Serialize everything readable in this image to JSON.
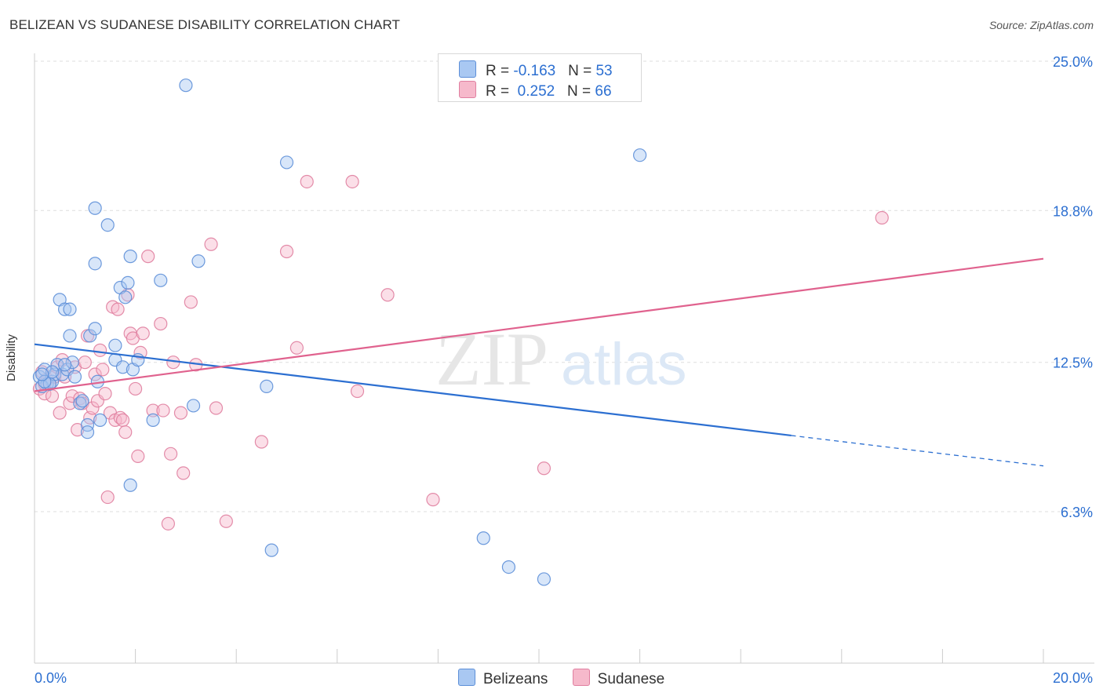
{
  "header": {
    "title": "BELIZEAN VS SUDANESE DISABILITY CORRELATION CHART",
    "source": "Source: ZipAtlas.com"
  },
  "watermark": {
    "zip": "ZIP",
    "atlas": "atlas"
  },
  "legend": {
    "row1": {
      "r_label": "R = ",
      "r_value": "-0.163",
      "n_label": "N = ",
      "n_value": "53"
    },
    "row2": {
      "r_label": "R = ",
      "r_value": "0.252",
      "n_label": "N = ",
      "n_value": "66"
    }
  },
  "bottom_legend": {
    "series1": "Belizeans",
    "series2": "Sudanese"
  },
  "colors": {
    "belizeans_fill": "#a9c8f2",
    "belizeans_stroke": "#5d8fd8",
    "belizeans_line": "#2c6fd1",
    "sudanese_fill": "#f6b9cb",
    "sudanese_stroke": "#e07fa0",
    "sudanese_line": "#e0628e",
    "tick_label": "#2c6fd1",
    "grid": "#dddddd"
  },
  "chart_data": {
    "type": "scatter",
    "title": "BELIZEAN VS SUDANESE DISABILITY CORRELATION CHART",
    "xlabel": "",
    "ylabel": "Disability",
    "xlim": [
      0,
      20
    ],
    "ylim": [
      0,
      26
    ],
    "x_tick_labels": [
      "0.0%",
      "20.0%"
    ],
    "y_ticks": [
      6.3,
      12.5,
      18.8,
      25.0
    ],
    "y_tick_labels": [
      "6.3%",
      "12.5%",
      "18.8%",
      "25.0%"
    ],
    "grid": "horizontal dashed",
    "series": [
      {
        "name": "Belizeans",
        "points": [
          [
            0.1,
            11.9
          ],
          [
            0.2,
            12.2
          ],
          [
            0.25,
            11.6
          ],
          [
            0.35,
            11.7
          ],
          [
            0.4,
            12.0
          ],
          [
            0.45,
            12.4
          ],
          [
            0.55,
            12.0
          ],
          [
            0.5,
            15.1
          ],
          [
            0.6,
            14.7
          ],
          [
            0.7,
            14.7
          ],
          [
            0.65,
            12.2
          ],
          [
            0.7,
            13.6
          ],
          [
            0.75,
            12.5
          ],
          [
            0.8,
            11.9
          ],
          [
            0.9,
            10.8
          ],
          [
            0.95,
            10.9
          ],
          [
            1.05,
            9.9
          ],
          [
            1.05,
            9.6
          ],
          [
            1.1,
            13.6
          ],
          [
            1.2,
            13.9
          ],
          [
            1.25,
            11.7
          ],
          [
            1.3,
            10.1
          ],
          [
            1.2,
            16.6
          ],
          [
            1.2,
            18.9
          ],
          [
            1.45,
            18.2
          ],
          [
            1.6,
            13.2
          ],
          [
            1.6,
            12.6
          ],
          [
            1.7,
            15.6
          ],
          [
            1.75,
            12.3
          ],
          [
            1.8,
            15.2
          ],
          [
            1.85,
            15.8
          ],
          [
            1.95,
            12.2
          ],
          [
            2.05,
            12.6
          ],
          [
            1.9,
            16.9
          ],
          [
            1.9,
            7.4
          ],
          [
            2.35,
            10.1
          ],
          [
            2.5,
            15.9
          ],
          [
            3.0,
            24.0
          ],
          [
            3.15,
            10.7
          ],
          [
            3.25,
            16.7
          ],
          [
            4.6,
            11.5
          ],
          [
            4.7,
            4.7
          ],
          [
            5.0,
            20.8
          ],
          [
            8.9,
            5.2
          ],
          [
            9.4,
            4.0
          ],
          [
            10.1,
            3.5
          ],
          [
            12.0,
            21.1
          ],
          [
            0.15,
            11.5
          ],
          [
            0.3,
            11.6
          ],
          [
            0.6,
            12.4
          ],
          [
            0.2,
            11.7
          ],
          [
            0.35,
            12.1
          ],
          [
            0.15,
            12.0
          ]
        ],
        "trend": {
          "x0": 0,
          "y0": 13.25,
          "x_solid_end": 15.0,
          "x1": 20,
          "y1": 8.2
        }
      },
      {
        "name": "Sudanese",
        "points": [
          [
            0.1,
            11.4
          ],
          [
            0.15,
            12.1
          ],
          [
            0.2,
            11.2
          ],
          [
            0.25,
            11.8
          ],
          [
            0.3,
            11.6
          ],
          [
            0.35,
            11.1
          ],
          [
            0.4,
            11.9
          ],
          [
            0.45,
            12.3
          ],
          [
            0.5,
            10.4
          ],
          [
            0.55,
            12.6
          ],
          [
            0.6,
            11.9
          ],
          [
            0.7,
            10.8
          ],
          [
            0.75,
            11.1
          ],
          [
            0.8,
            12.3
          ],
          [
            0.85,
            9.7
          ],
          [
            0.9,
            11.0
          ],
          [
            0.95,
            10.8
          ],
          [
            1.0,
            12.5
          ],
          [
            1.05,
            13.6
          ],
          [
            1.1,
            10.2
          ],
          [
            1.15,
            10.6
          ],
          [
            1.2,
            12.0
          ],
          [
            1.25,
            10.9
          ],
          [
            1.3,
            13.0
          ],
          [
            1.35,
            12.2
          ],
          [
            1.4,
            11.2
          ],
          [
            1.45,
            6.9
          ],
          [
            1.5,
            10.4
          ],
          [
            1.55,
            14.8
          ],
          [
            1.6,
            10.1
          ],
          [
            1.65,
            14.7
          ],
          [
            1.7,
            10.2
          ],
          [
            1.75,
            10.1
          ],
          [
            1.8,
            9.6
          ],
          [
            1.85,
            15.3
          ],
          [
            1.9,
            13.7
          ],
          [
            1.95,
            13.5
          ],
          [
            2.0,
            11.4
          ],
          [
            2.05,
            8.6
          ],
          [
            2.1,
            12.9
          ],
          [
            2.15,
            13.7
          ],
          [
            2.25,
            16.9
          ],
          [
            2.35,
            10.5
          ],
          [
            2.5,
            14.1
          ],
          [
            2.55,
            10.5
          ],
          [
            2.65,
            5.8
          ],
          [
            2.7,
            8.7
          ],
          [
            2.75,
            12.5
          ],
          [
            2.9,
            10.4
          ],
          [
            2.95,
            7.9
          ],
          [
            3.1,
            15.0
          ],
          [
            3.2,
            12.4
          ],
          [
            3.5,
            17.4
          ],
          [
            3.6,
            10.6
          ],
          [
            3.8,
            5.9
          ],
          [
            4.5,
            9.2
          ],
          [
            5.0,
            17.1
          ],
          [
            5.2,
            13.1
          ],
          [
            5.4,
            20.0
          ],
          [
            6.3,
            20.0
          ],
          [
            6.4,
            11.3
          ],
          [
            7.0,
            15.3
          ],
          [
            7.9,
            6.8
          ],
          [
            10.1,
            8.1
          ],
          [
            16.8,
            18.5
          ],
          [
            0.2,
            11.6
          ]
        ],
        "trend": {
          "x0": 0,
          "y0": 11.3,
          "x1": 20,
          "y1": 16.8
        }
      }
    ]
  }
}
